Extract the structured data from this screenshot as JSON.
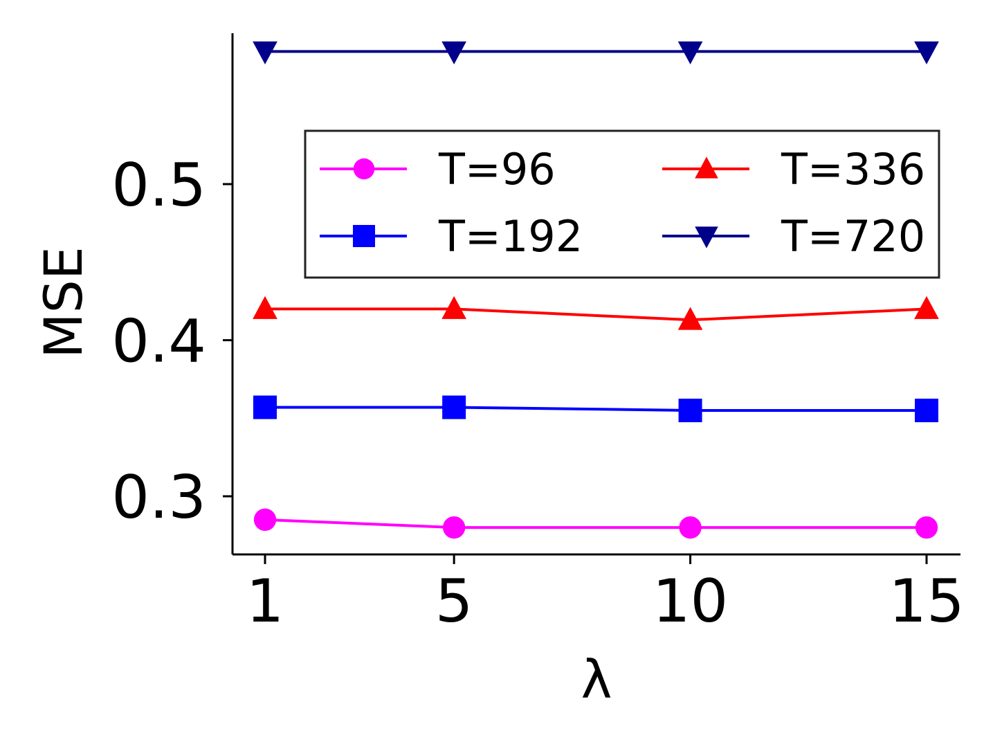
{
  "chart_data": {
    "type": "line",
    "xlabel": "λ",
    "ylabel": "MSE",
    "x": [
      1,
      5,
      10,
      15
    ],
    "x_tick_labels": [
      "1",
      "5",
      "10",
      "15"
    ],
    "y_ticks": [
      0.3,
      0.4,
      0.5
    ],
    "y_tick_labels": [
      "0.3",
      "0.4",
      "0.5"
    ],
    "ylim": [
      0.265,
      0.6
    ],
    "grid": false,
    "legend": {
      "placement": "upper-right",
      "columns": 2
    },
    "series": [
      {
        "name": "T=96",
        "color": "#ff00ff",
        "marker": "circle",
        "values": [
          0.285,
          0.28,
          0.28,
          0.28
        ]
      },
      {
        "name": "T=192",
        "color": "#0000ff",
        "marker": "square",
        "values": [
          0.357,
          0.357,
          0.355,
          0.355
        ]
      },
      {
        "name": "T=336",
        "color": "#ff0000",
        "marker": "triangle-up",
        "values": [
          0.42,
          0.42,
          0.413,
          0.42
        ]
      },
      {
        "name": "T=720",
        "color": "#00008b",
        "marker": "triangle-down",
        "values": [
          0.585,
          0.585,
          0.585,
          0.585
        ]
      }
    ]
  }
}
